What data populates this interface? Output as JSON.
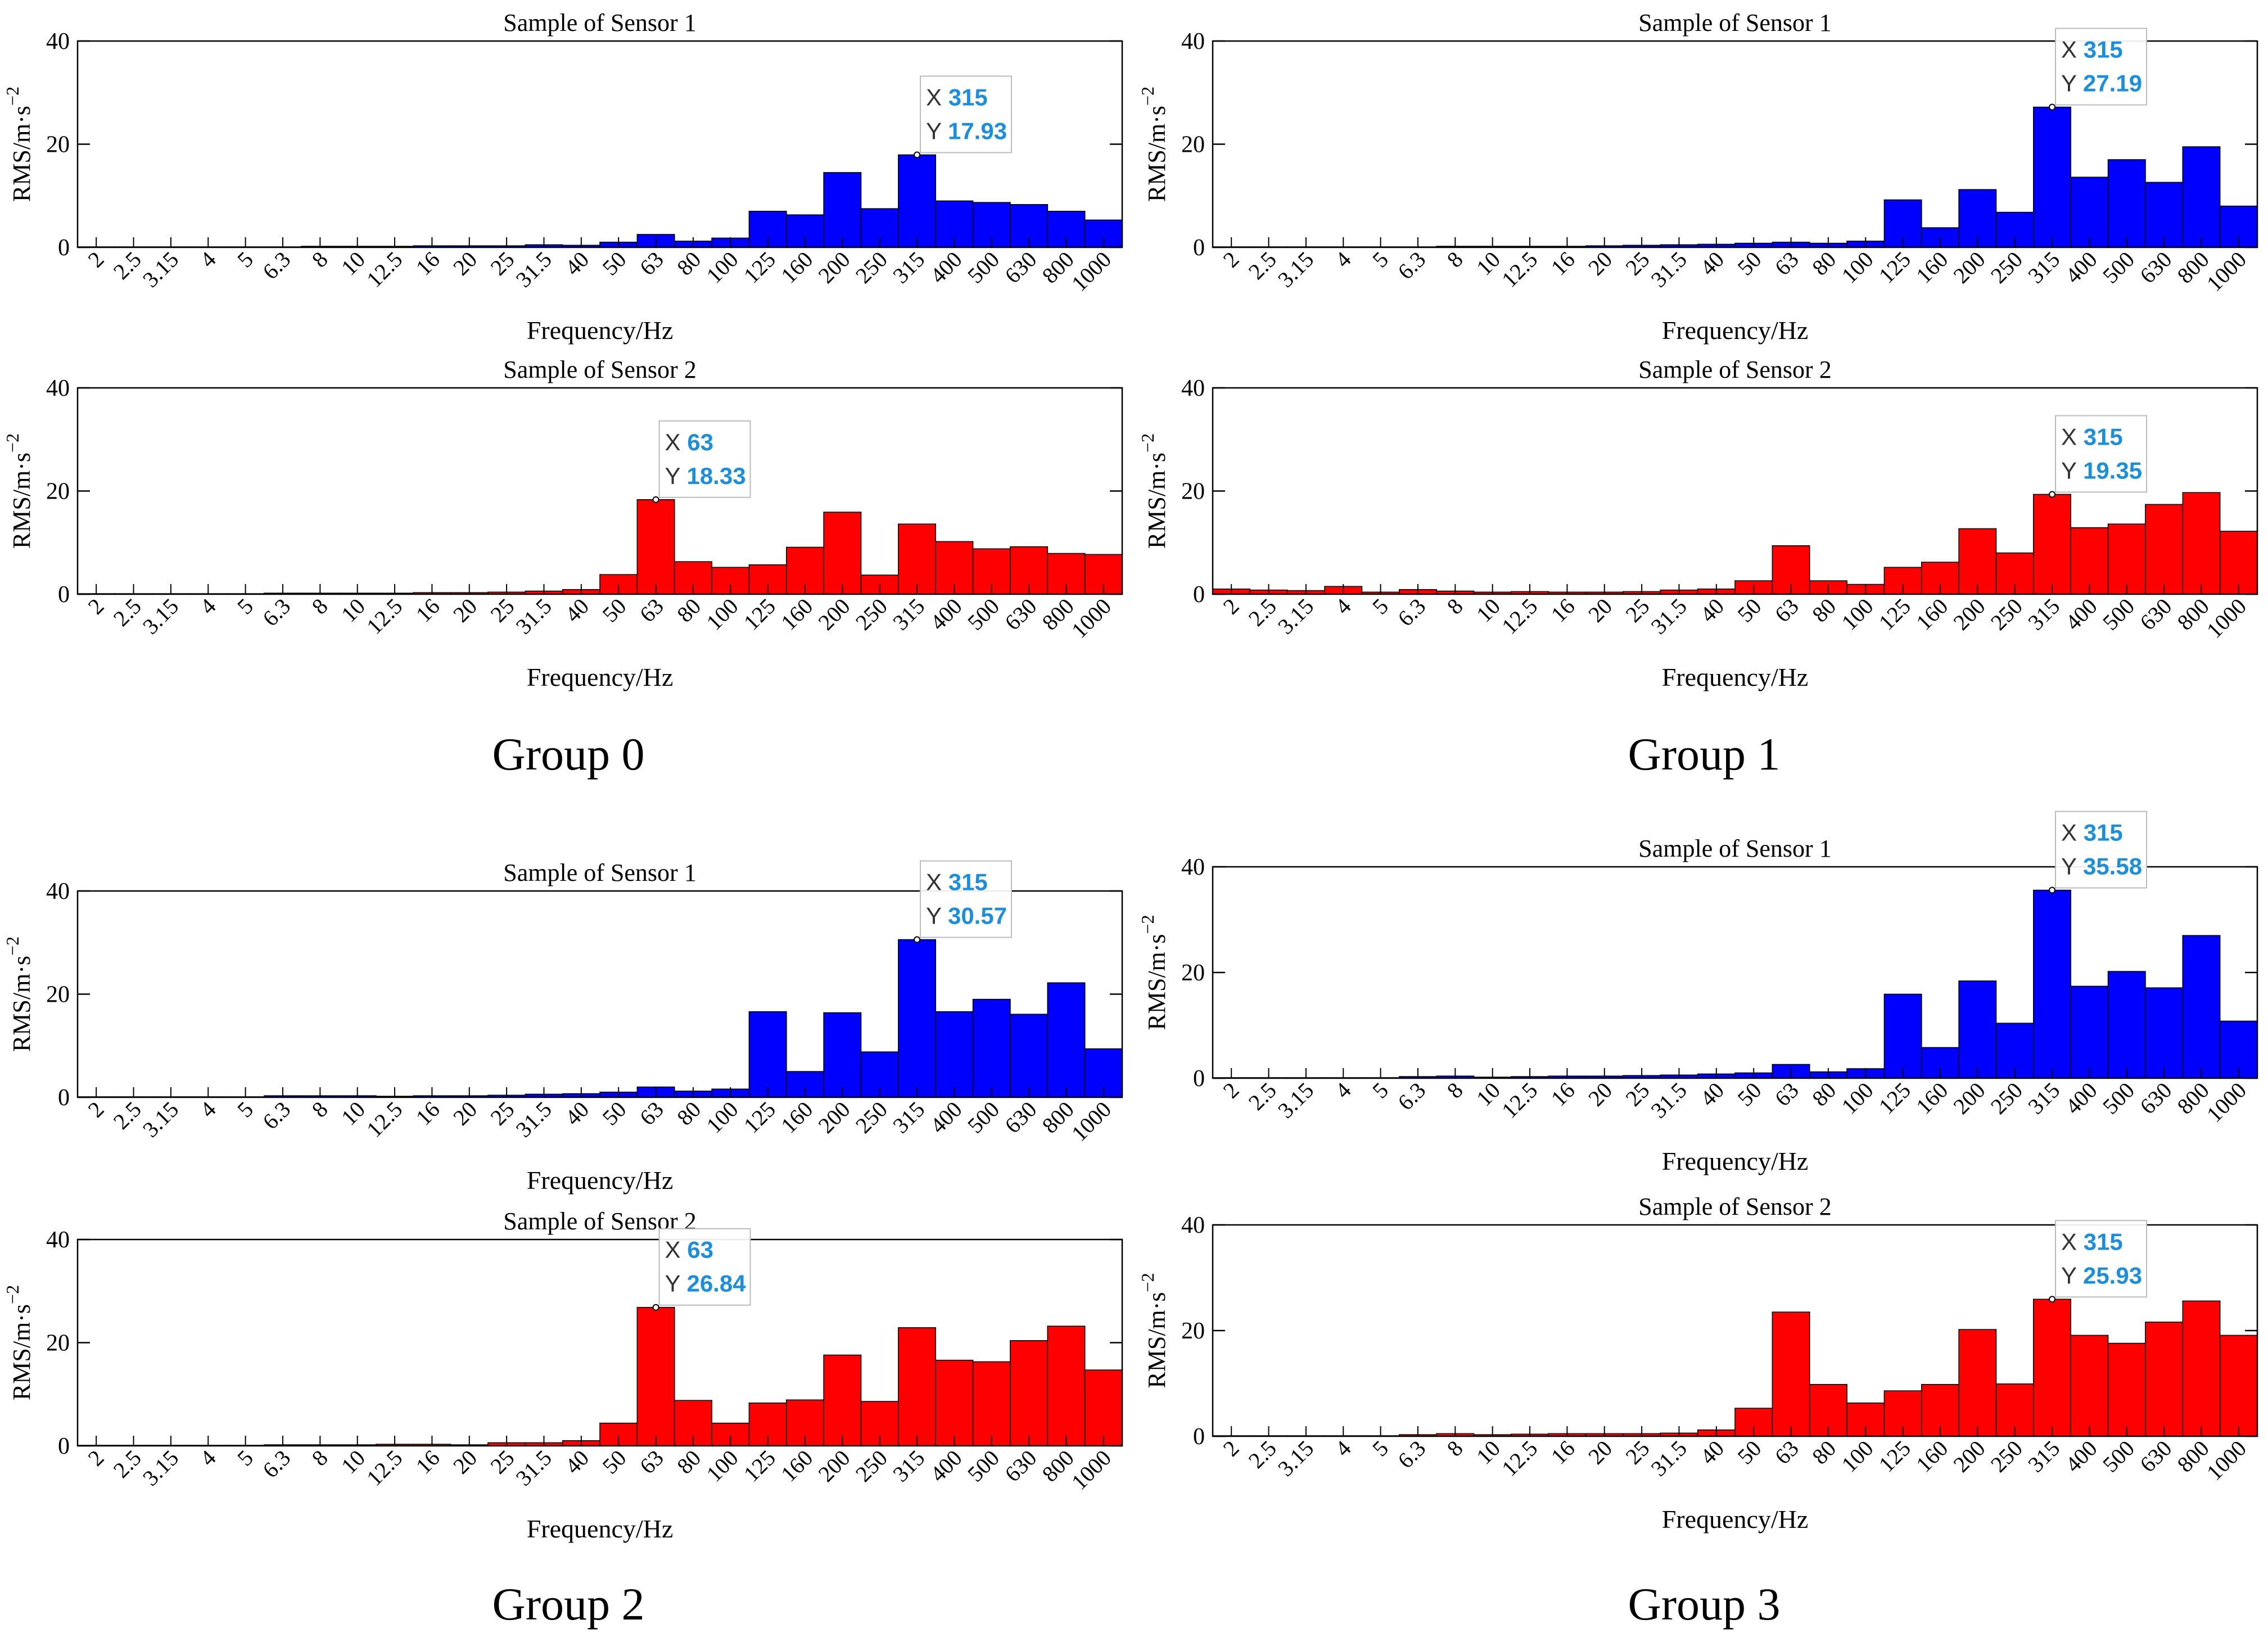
{
  "chart_data": [
    {
      "type": "bar",
      "group": "Group 0",
      "title": "Sample of Sensor 1",
      "xlabel": "Frequency/Hz",
      "ylabel": "RMS/m·s",
      "ylabel_exp": "−2",
      "ylim": [
        0,
        40
      ],
      "yticks": [
        0,
        20,
        40
      ],
      "color": "#0000ff",
      "categories": [
        "2",
        "2.5",
        "3.15",
        "4",
        "5",
        "6.3",
        "8",
        "10",
        "12.5",
        "16",
        "20",
        "25",
        "31.5",
        "40",
        "50",
        "63",
        "80",
        "100",
        "125",
        "160",
        "200",
        "250",
        "315",
        "400",
        "500",
        "630",
        "800",
        "1000"
      ],
      "values": [
        0.1,
        0.1,
        0.1,
        0.1,
        0.1,
        0.1,
        0.2,
        0.2,
        0.2,
        0.3,
        0.3,
        0.3,
        0.5,
        0.4,
        1.0,
        2.5,
        1.2,
        1.8,
        7.0,
        6.3,
        14.5,
        7.5,
        17.93,
        9.0,
        8.7,
        8.3,
        7.0,
        5.3
      ],
      "datatip": {
        "x_label": "X",
        "x_value": "315",
        "y_label": "Y",
        "y_value": "17.93",
        "index": 22
      }
    },
    {
      "type": "bar",
      "group": "Group 0",
      "title": "Sample of Sensor 2",
      "xlabel": "Frequency/Hz",
      "ylabel": "RMS/m·s",
      "ylabel_exp": "−2",
      "ylim": [
        0,
        40
      ],
      "yticks": [
        0,
        20,
        40
      ],
      "color": "#ff0000",
      "categories": [
        "2",
        "2.5",
        "3.15",
        "4",
        "5",
        "6.3",
        "8",
        "10",
        "12.5",
        "16",
        "20",
        "25",
        "31.5",
        "40",
        "50",
        "63",
        "80",
        "100",
        "125",
        "160",
        "200",
        "250",
        "315",
        "400",
        "500",
        "630",
        "800",
        "1000"
      ],
      "values": [
        0.1,
        0.1,
        0.1,
        0.1,
        0.1,
        0.2,
        0.2,
        0.2,
        0.2,
        0.3,
        0.3,
        0.4,
        0.6,
        0.9,
        3.8,
        18.33,
        6.3,
        5.2,
        5.7,
        9.1,
        15.9,
        3.7,
        13.6,
        10.2,
        8.8,
        9.2,
        7.9,
        7.7
      ],
      "datatip": {
        "x_label": "X",
        "x_value": "63",
        "y_label": "Y",
        "y_value": "18.33",
        "index": 15
      }
    },
    {
      "type": "bar",
      "group": "Group 1",
      "title": "Sample of Sensor 1",
      "xlabel": "Frequency/Hz",
      "ylabel": "RMS/m·s",
      "ylabel_exp": "−2",
      "ylim": [
        0,
        40
      ],
      "yticks": [
        0,
        20,
        40
      ],
      "color": "#0000ff",
      "categories": [
        "2",
        "2.5",
        "3.15",
        "4",
        "5",
        "6.3",
        "8",
        "10",
        "12.5",
        "16",
        "20",
        "25",
        "31.5",
        "40",
        "50",
        "63",
        "80",
        "100",
        "125",
        "160",
        "200",
        "250",
        "315",
        "400",
        "500",
        "630",
        "800",
        "1000"
      ],
      "values": [
        0.1,
        0.1,
        0.1,
        0.1,
        0.1,
        0.1,
        0.2,
        0.2,
        0.2,
        0.2,
        0.3,
        0.4,
        0.5,
        0.6,
        0.8,
        1.0,
        0.8,
        1.2,
        9.2,
        3.8,
        11.2,
        6.8,
        27.19,
        13.6,
        17.0,
        12.6,
        19.5,
        8.0
      ],
      "datatip": {
        "x_label": "X",
        "x_value": "315",
        "y_label": "Y",
        "y_value": "27.19",
        "index": 22
      }
    },
    {
      "type": "bar",
      "group": "Group 1",
      "title": "Sample of Sensor 2",
      "xlabel": "Frequency/Hz",
      "ylabel": "RMS/m·s",
      "ylabel_exp": "−2",
      "ylim": [
        0,
        40
      ],
      "yticks": [
        0,
        20,
        40
      ],
      "color": "#ff0000",
      "categories": [
        "2",
        "2.5",
        "3.15",
        "4",
        "5",
        "6.3",
        "8",
        "10",
        "12.5",
        "16",
        "20",
        "25",
        "31.5",
        "40",
        "50",
        "63",
        "80",
        "100",
        "125",
        "160",
        "200",
        "250",
        "315",
        "400",
        "500",
        "630",
        "800",
        "1000"
      ],
      "values": [
        1.0,
        0.8,
        0.7,
        1.5,
        0.4,
        0.9,
        0.6,
        0.4,
        0.5,
        0.4,
        0.4,
        0.5,
        0.8,
        1.0,
        2.6,
        9.4,
        2.6,
        1.9,
        5.2,
        6.2,
        12.7,
        8.0,
        19.35,
        12.9,
        13.6,
        17.4,
        19.7,
        12.2
      ],
      "datatip": {
        "x_label": "X",
        "x_value": "315",
        "y_label": "Y",
        "y_value": "19.35",
        "index": 22
      }
    },
    {
      "type": "bar",
      "group": "Group 2",
      "title": "Sample of Sensor 1",
      "xlabel": "Frequency/Hz",
      "ylabel": "RMS/m·s",
      "ylabel_exp": "−2",
      "ylim": [
        0,
        40
      ],
      "yticks": [
        0,
        20,
        40
      ],
      "color": "#0000ff",
      "categories": [
        "2",
        "2.5",
        "3.15",
        "4",
        "5",
        "6.3",
        "8",
        "10",
        "12.5",
        "16",
        "20",
        "25",
        "31.5",
        "40",
        "50",
        "63",
        "80",
        "100",
        "125",
        "160",
        "200",
        "250",
        "315",
        "400",
        "500",
        "630",
        "800",
        "1000"
      ],
      "values": [
        0.1,
        0.1,
        0.1,
        0.1,
        0.1,
        0.3,
        0.3,
        0.3,
        0.2,
        0.3,
        0.3,
        0.4,
        0.6,
        0.7,
        1.0,
        2.0,
        1.2,
        1.6,
        16.6,
        5.0,
        16.4,
        8.8,
        30.57,
        16.6,
        19.0,
        16.1,
        22.2,
        9.4
      ],
      "datatip": {
        "x_label": "X",
        "x_value": "315",
        "y_label": "Y",
        "y_value": "30.57",
        "index": 22
      }
    },
    {
      "type": "bar",
      "group": "Group 2",
      "title": "Sample of Sensor 2",
      "xlabel": "Frequency/Hz",
      "ylabel": "RMS/m·s",
      "ylabel_exp": "−2",
      "ylim": [
        0,
        40
      ],
      "yticks": [
        0,
        20,
        40
      ],
      "color": "#ff0000",
      "categories": [
        "2",
        "2.5",
        "3.15",
        "4",
        "5",
        "6.3",
        "8",
        "10",
        "12.5",
        "16",
        "20",
        "25",
        "31.5",
        "40",
        "50",
        "63",
        "80",
        "100",
        "125",
        "160",
        "200",
        "250",
        "315",
        "400",
        "500",
        "630",
        "800",
        "1000"
      ],
      "values": [
        0.1,
        0.1,
        0.1,
        0.1,
        0.1,
        0.2,
        0.2,
        0.2,
        0.3,
        0.3,
        0.2,
        0.6,
        0.6,
        1.0,
        4.4,
        26.84,
        8.8,
        4.4,
        8.3,
        8.9,
        17.6,
        8.6,
        22.9,
        16.6,
        16.3,
        20.4,
        23.2,
        14.7
      ],
      "datatip": {
        "x_label": "X",
        "x_value": "63",
        "y_label": "Y",
        "y_value": "26.84",
        "index": 15
      }
    },
    {
      "type": "bar",
      "group": "Group 3",
      "title": "Sample of Sensor 1",
      "xlabel": "Frequency/Hz",
      "ylabel": "RMS/m·s",
      "ylabel_exp": "−2",
      "ylim": [
        0,
        40
      ],
      "yticks": [
        0,
        20,
        40
      ],
      "color": "#0000ff",
      "categories": [
        "2",
        "2.5",
        "3.15",
        "4",
        "5",
        "6.3",
        "8",
        "10",
        "12.5",
        "16",
        "20",
        "25",
        "31.5",
        "40",
        "50",
        "63",
        "80",
        "100",
        "125",
        "160",
        "200",
        "250",
        "315",
        "400",
        "500",
        "630",
        "800",
        "1000"
      ],
      "values": [
        0.1,
        0.1,
        0.1,
        0.1,
        0.1,
        0.3,
        0.4,
        0.2,
        0.3,
        0.4,
        0.4,
        0.5,
        0.6,
        0.8,
        1.0,
        2.6,
        1.2,
        1.8,
        15.9,
        5.8,
        18.4,
        10.4,
        35.58,
        17.4,
        20.2,
        17.1,
        27.0,
        10.8
      ],
      "datatip": {
        "x_label": "X",
        "x_value": "315",
        "y_label": "Y",
        "y_value": "35.58",
        "index": 22
      }
    },
    {
      "type": "bar",
      "group": "Group 3",
      "title": "Sample of Sensor 2",
      "xlabel": "Frequency/Hz",
      "ylabel": "RMS/m·s",
      "ylabel_exp": "−2",
      "ylim": [
        0,
        40
      ],
      "yticks": [
        0,
        20,
        40
      ],
      "color": "#ff0000",
      "categories": [
        "2",
        "2.5",
        "3.15",
        "4",
        "5",
        "6.3",
        "8",
        "10",
        "12.5",
        "16",
        "20",
        "25",
        "31.5",
        "40",
        "50",
        "63",
        "80",
        "100",
        "125",
        "160",
        "200",
        "250",
        "315",
        "400",
        "500",
        "630",
        "800",
        "1000"
      ],
      "values": [
        0.1,
        0.1,
        0.1,
        0.1,
        0.1,
        0.3,
        0.5,
        0.3,
        0.4,
        0.5,
        0.5,
        0.5,
        0.6,
        1.2,
        5.3,
        23.5,
        9.8,
        6.3,
        8.6,
        9.8,
        20.2,
        9.9,
        25.93,
        19.1,
        17.6,
        21.6,
        25.6,
        19.1
      ],
      "datatip": {
        "x_label": "X",
        "x_value": "315",
        "y_label": "Y",
        "y_value": "25.93",
        "index": 22
      }
    }
  ],
  "groups": [
    {
      "label": "Group 0"
    },
    {
      "label": "Group 1"
    },
    {
      "label": "Group 2"
    },
    {
      "label": "Group 3"
    }
  ]
}
